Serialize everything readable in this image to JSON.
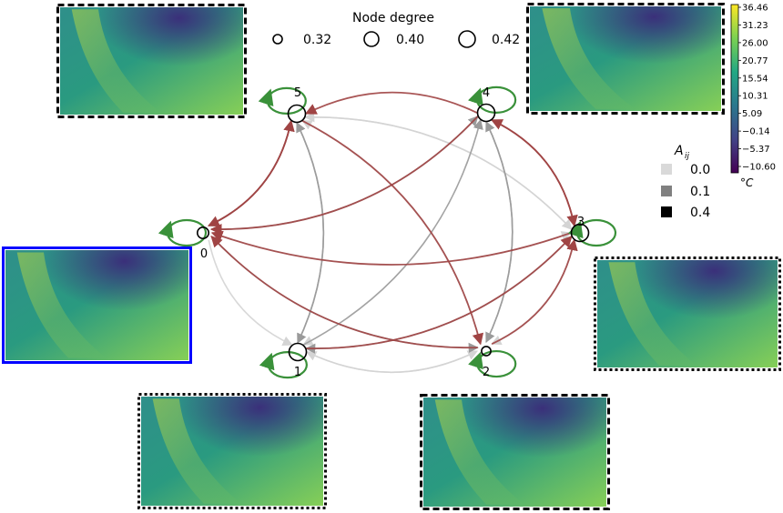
{
  "legend_degree": {
    "title": "Node degree",
    "items": [
      {
        "label": "0.32",
        "value": 0.32
      },
      {
        "label": "0.40",
        "value": 0.4
      },
      {
        "label": "0.42",
        "value": 0.42
      }
    ]
  },
  "legend_weight": {
    "title": "A",
    "title_sub": "ij",
    "items": [
      {
        "label": "0.0",
        "color": "#d9d9d9"
      },
      {
        "label": "0.1",
        "color": "#808080"
      },
      {
        "label": "0.4",
        "color": "#000000"
      }
    ]
  },
  "colorbar": {
    "ticks": [
      "36.46",
      "31.23",
      "26.00",
      "20.77",
      "15.54",
      "10.31",
      "5.09",
      "−0.14",
      "−5.37",
      "−10.60"
    ],
    "unit": "°C",
    "colors": [
      "#fde725",
      "#7ad151",
      "#22a884",
      "#2a788e",
      "#414487",
      "#440154"
    ]
  },
  "nodes": [
    {
      "id": "0",
      "label": "0",
      "degree": 0.34
    },
    {
      "id": "1",
      "label": "1",
      "degree": 0.4
    },
    {
      "id": "2",
      "label": "2",
      "degree": 0.32
    },
    {
      "id": "3",
      "label": "3",
      "degree": 0.4
    },
    {
      "id": "4",
      "label": "4",
      "degree": 0.4
    },
    {
      "id": "5",
      "label": "5",
      "degree": 0.4
    }
  ],
  "colors": {
    "edge_strong": "#a04444",
    "edge_mid": "#9a9a9a",
    "edge_light": "#d4d4d4",
    "self_loop": "#3a913a",
    "frame_highlight": "#0000ff"
  },
  "edges": [
    {
      "from": "5",
      "to": "0",
      "weight": "strong"
    },
    {
      "from": "0",
      "to": "5",
      "weight": "strong"
    },
    {
      "from": "4",
      "to": "0",
      "weight": "strong"
    },
    {
      "from": "2",
      "to": "0",
      "weight": "strong"
    },
    {
      "from": "3",
      "to": "0",
      "weight": "strong"
    },
    {
      "from": "4",
      "to": "5",
      "weight": "strong"
    },
    {
      "from": "5",
      "to": "2",
      "weight": "strong"
    },
    {
      "from": "3",
      "to": "4",
      "weight": "strong"
    },
    {
      "from": "4",
      "to": "3",
      "weight": "strong"
    },
    {
      "from": "1",
      "to": "3",
      "weight": "strong"
    },
    {
      "from": "2",
      "to": "3",
      "weight": "strong"
    },
    {
      "from": "1",
      "to": "5",
      "weight": "mid"
    },
    {
      "from": "5",
      "to": "1",
      "weight": "mid"
    },
    {
      "from": "4",
      "to": "2",
      "weight": "mid"
    },
    {
      "from": "2",
      "to": "4",
      "weight": "mid"
    },
    {
      "from": "1",
      "to": "4",
      "weight": "mid"
    },
    {
      "from": "0",
      "to": "4",
      "weight": "mid"
    },
    {
      "from": "5",
      "to": "0",
      "weight": "mid"
    },
    {
      "from": "3",
      "to": "1",
      "weight": "mid"
    },
    {
      "from": "0",
      "to": "2",
      "weight": "mid"
    },
    {
      "from": "5",
      "to": "3",
      "weight": "light"
    },
    {
      "from": "3",
      "to": "5",
      "weight": "light"
    },
    {
      "from": "0",
      "to": "3",
      "weight": "light"
    },
    {
      "from": "0",
      "to": "1",
      "weight": "light"
    },
    {
      "from": "1",
      "to": "2",
      "weight": "light"
    },
    {
      "from": "2",
      "to": "1",
      "weight": "light"
    },
    {
      "from": "4",
      "to": "1",
      "weight": "light"
    },
    {
      "from": "2",
      "to": "5",
      "weight": "light"
    },
    {
      "from": "3",
      "to": "2",
      "weight": "light"
    }
  ],
  "maps": [
    {
      "name": "map-node-5",
      "frame": "dashed"
    },
    {
      "name": "map-node-4",
      "frame": "dashed"
    },
    {
      "name": "map-node-0",
      "frame": "highlight"
    },
    {
      "name": "map-node-3",
      "frame": "dotted"
    },
    {
      "name": "map-node-1",
      "frame": "dotted"
    },
    {
      "name": "map-node-2",
      "frame": "dashed"
    }
  ]
}
